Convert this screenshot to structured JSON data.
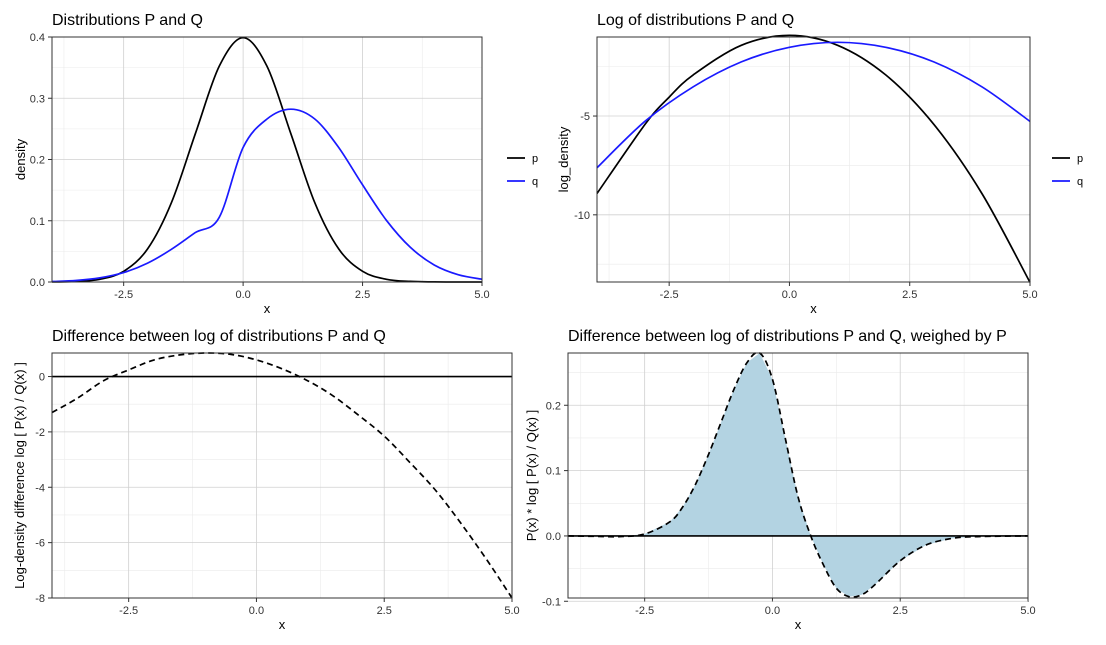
{
  "chart_data": [
    {
      "type": "line",
      "title": "Distributions P and Q",
      "xlabel": "x",
      "ylabel": "density",
      "xlim": [
        -4,
        5
      ],
      "ylim": [
        0,
        0.4
      ],
      "x_ticks": [
        -2.5,
        0,
        2.5,
        5
      ],
      "x_tick_labels": [
        "-2.5",
        "0.0",
        "2.5",
        "5.0"
      ],
      "y_ticks": [
        0,
        0.1,
        0.2,
        0.3,
        0.4
      ],
      "y_tick_labels": [
        "0.0",
        "0.1",
        "0.2",
        "0.3",
        "0.4"
      ],
      "grid": true,
      "legend": "right",
      "series": [
        {
          "name": "p",
          "color": "#000000",
          "dash": "none",
          "x": [
            -4,
            -3.5,
            -3,
            -2.5,
            -2,
            -1.5,
            -1,
            -0.5,
            0,
            0.5,
            1,
            1.5,
            2,
            2.5,
            3,
            3.5,
            4,
            4.5,
            5
          ],
          "y": [
            0.0001,
            0.0009,
            0.0044,
            0.0175,
            0.054,
            0.1295,
            0.242,
            0.3521,
            0.3989,
            0.3521,
            0.242,
            0.1295,
            0.054,
            0.0175,
            0.0044,
            0.0009,
            0.0001,
            0,
            0
          ]
        },
        {
          "name": "q",
          "color": "#1a1aff",
          "dash": "none",
          "x": [
            -4,
            -3.5,
            -3,
            -2.5,
            -2,
            -1.5,
            -1,
            -0.5,
            0,
            0.5,
            1,
            1.5,
            2,
            2.5,
            3,
            3.5,
            4,
            4.5,
            5
          ],
          "y": [
            0.0008,
            0.0025,
            0.0067,
            0.0154,
            0.0308,
            0.0534,
            0.0806,
            0.1055,
            0.2196,
            0.2661,
            0.2821,
            0.2661,
            0.2196,
            0.1585,
            0.1007,
            0.0566,
            0.0278,
            0.0119,
            0.0045
          ]
        }
      ]
    },
    {
      "type": "line",
      "title": "Log of distributions P and Q",
      "xlabel": "x",
      "ylabel": "log_density",
      "xlim": [
        -4,
        5
      ],
      "ylim": [
        -13.4,
        -1
      ],
      "x_ticks": [
        -2.5,
        0,
        2.5,
        5
      ],
      "x_tick_labels": [
        "-2.5",
        "0.0",
        "2.5",
        "5.0"
      ],
      "y_ticks": [
        -10,
        -5
      ],
      "y_tick_labels": [
        "-10",
        "-5"
      ],
      "grid": true,
      "legend": "right",
      "series": [
        {
          "name": "p",
          "color": "#000000",
          "dash": "none",
          "x": [
            -4,
            -3,
            -2.5,
            -2,
            -1,
            0,
            1,
            2,
            3,
            4,
            5
          ],
          "y": [
            -8.92,
            -5.42,
            -4.04,
            -2.92,
            -1.42,
            -0.92,
            -1.42,
            -2.92,
            -5.42,
            -8.92,
            -13.42
          ]
        },
        {
          "name": "q",
          "color": "#1a1aff",
          "dash": "none",
          "x": [
            -4,
            -3,
            -2,
            -1,
            0,
            1,
            2,
            3,
            4,
            5
          ],
          "y": [
            -7.62,
            -5.26,
            -3.52,
            -2.26,
            -1.52,
            -1.27,
            -1.52,
            -2.26,
            -3.52,
            -5.27
          ]
        }
      ]
    },
    {
      "type": "line",
      "title": "Difference between log of distributions P and Q",
      "xlabel": "x",
      "ylabel": "Log-density difference log [ P(x) / Q(x) ]",
      "xlim": [
        -4,
        5
      ],
      "ylim": [
        -8,
        0.85
      ],
      "x_ticks": [
        -2.5,
        0,
        2.5,
        5
      ],
      "x_tick_labels": [
        "-2.5",
        "0.0",
        "2.5",
        "5.0"
      ],
      "y_ticks": [
        -8,
        -6,
        -4,
        -2,
        0
      ],
      "y_tick_labels": [
        "-8",
        "-6",
        "-4",
        "-2",
        "0"
      ],
      "grid": true,
      "hline": 0,
      "series": [
        {
          "color": "#000000",
          "dash": "dashed",
          "x": [
            -4,
            -3.5,
            -3,
            -2.5,
            -2,
            -1.5,
            -1,
            -0.5,
            0,
            0.5,
            1,
            1.5,
            2,
            2.5,
            3,
            3.5,
            4,
            4.5,
            5
          ],
          "y": [
            -1.3,
            -0.78,
            -0.16,
            0.24,
            0.6,
            0.78,
            0.85,
            0.8,
            0.6,
            0.28,
            -0.15,
            -0.7,
            -1.4,
            -2.15,
            -3.1,
            -4.1,
            -5.3,
            -6.6,
            -8
          ]
        }
      ]
    },
    {
      "type": "area",
      "title": "Difference between log of distributions P and Q, weighed by P",
      "xlabel": "x",
      "ylabel": "P(x) * log [ P(x) / Q(x) ]",
      "xlim": [
        -4,
        5
      ],
      "ylim": [
        -0.095,
        0.28
      ],
      "x_ticks": [
        -2.5,
        0,
        2.5,
        5
      ],
      "x_tick_labels": [
        "-2.5",
        "0.0",
        "2.5",
        "5.0"
      ],
      "y_ticks": [
        -0.1,
        0,
        0.1,
        0.2
      ],
      "y_tick_labels": [
        "-0.1",
        "0.0",
        "0.1",
        "0.2"
      ],
      "grid": true,
      "hline": 0,
      "fill_color": "#b3d3e2",
      "series": [
        {
          "color": "#000000",
          "dash": "dashed",
          "x": [
            -4,
            -3.5,
            -3,
            -2.5,
            -2,
            -1.75,
            -1.5,
            -1.25,
            -1,
            -0.75,
            -0.5,
            -0.25,
            0,
            0.25,
            0.5,
            0.75,
            1,
            1.25,
            1.5,
            1.75,
            2,
            2.5,
            3,
            3.5,
            4,
            5
          ],
          "y": [
            0,
            -0.0005,
            -0.001,
            0.003,
            0.022,
            0.045,
            0.08,
            0.125,
            0.175,
            0.225,
            0.265,
            0.28,
            0.24,
            0.15,
            0.06,
            0.0,
            -0.045,
            -0.08,
            -0.093,
            -0.09,
            -0.075,
            -0.038,
            -0.014,
            -0.004,
            -0.001,
            0
          ]
        }
      ]
    }
  ]
}
